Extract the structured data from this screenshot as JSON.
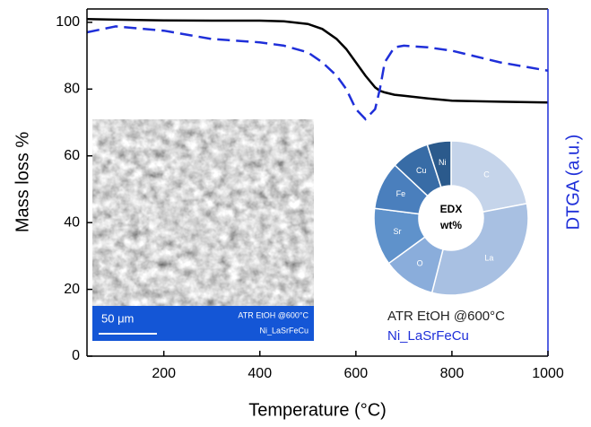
{
  "chart_data": [
    {
      "type": "line",
      "x_label": "Temperature (°C)",
      "y_label": "Mass loss %",
      "y2_label": "DTGA (a.u.)",
      "x": [
        40,
        100,
        200,
        300,
        400,
        450,
        500,
        530,
        560,
        580,
        600,
        620,
        640,
        650,
        660,
        680,
        700,
        750,
        800,
        900,
        1000
      ],
      "series": [
        {
          "color": "#000000",
          "style": "solid",
          "values": [
            101,
            100.8,
            100.6,
            100.5,
            100.5,
            100.3,
            99.5,
            98,
            95,
            92,
            88,
            84,
            80.5,
            79.5,
            79,
            78.3,
            78,
            77.2,
            76.5,
            76.2,
            76
          ]
        },
        {
          "color": "#1f2fd9",
          "style": "dashed",
          "axis": "y2",
          "values": [
            97,
            98.8,
            97.5,
            95,
            94,
            93,
            91,
            88,
            84,
            80,
            74,
            71,
            74,
            80,
            88,
            92.5,
            93,
            92.5,
            91.5,
            88,
            85.5
          ]
        }
      ],
      "xlim": [
        40,
        1000
      ],
      "xticks": [
        200,
        400,
        600,
        800,
        1000
      ],
      "ylim": [
        0,
        104
      ],
      "yticks": [
        0,
        20,
        40,
        60,
        80,
        100
      ],
      "y2lim": [
        0,
        104
      ],
      "y2_color": "#1f2fd9",
      "annotations": [
        {
          "text": "ATR EtOH @600°C",
          "color": "#222222"
        },
        {
          "text": "Ni_LaSrFeCu",
          "color": "#1f2fd9"
        }
      ],
      "inset": {
        "scale_bar": "50 μm",
        "labels": [
          "ATR EtOH @600°C",
          "Ni_LaSrFeCu"
        ]
      }
    },
    {
      "type": "pie",
      "title": "EDX",
      "subtitle": "wt%",
      "categories": [
        "C",
        "La",
        "O",
        "Sr",
        "Fe",
        "Cu",
        "Ni"
      ],
      "values": [
        22,
        32,
        11,
        12,
        10,
        8,
        5
      ],
      "colors": [
        "#c5d4ea",
        "#a8c0e2",
        "#8aaddb",
        "#5f92cb",
        "#4a7fbd",
        "#386ca6",
        "#2b5a8c"
      ]
    }
  ]
}
